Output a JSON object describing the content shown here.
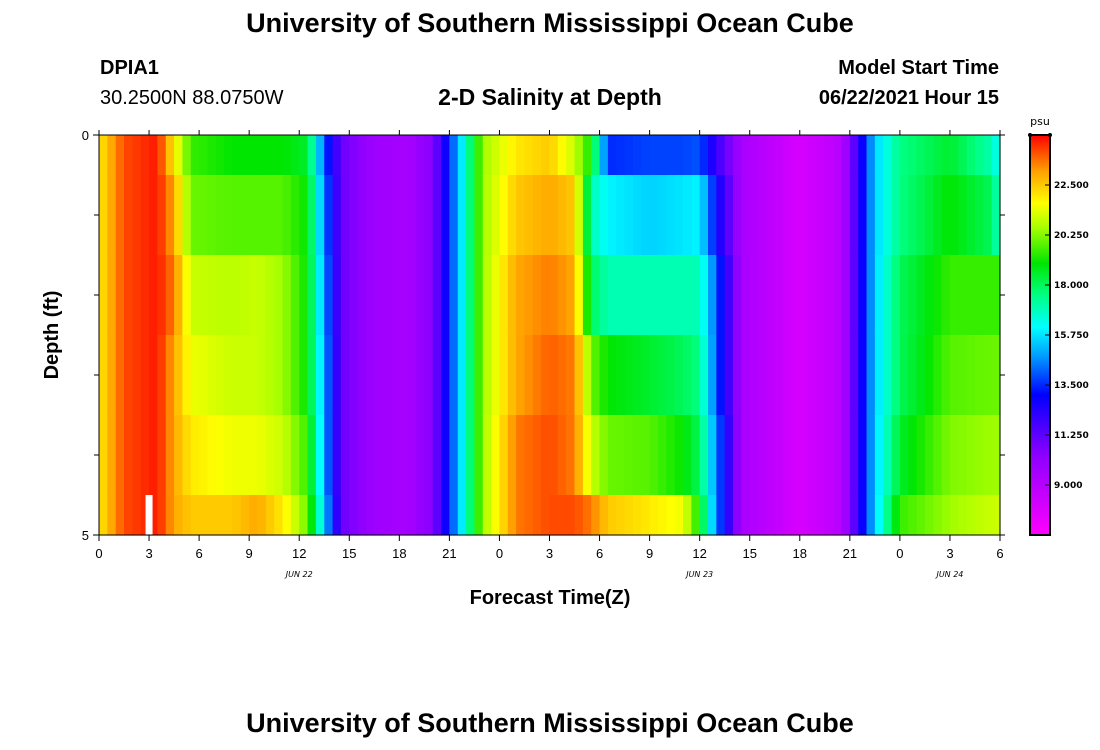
{
  "header": {
    "title": "University of Southern Mississippi Ocean Cube",
    "station_id": "DPIA1",
    "coordinates": "30.2500N  88.0750W",
    "plot_title": "2-D Salinity at Depth",
    "model_start_label": "Model Start Time",
    "model_start_value": "06/22/2021 Hour 15"
  },
  "footer": {
    "title": "University of Southern Mississippi Ocean Cube"
  },
  "colors": {
    "background": "#ffffff",
    "marker": "#ffffff"
  },
  "chart_data": {
    "type": "heatmap",
    "title": "2-D Salinity at Depth",
    "xlabel": "Forecast Time(Z)",
    "ylabel": "Depth (ft)",
    "x_range": [
      0,
      54
    ],
    "y_range": [
      0,
      5
    ],
    "x_tick_values": [
      0,
      3,
      6,
      9,
      12,
      15,
      18,
      21,
      24,
      27,
      30,
      33,
      36,
      39,
      42,
      45,
      48,
      51,
      54
    ],
    "x_tick_labels": [
      "0",
      "3",
      "6",
      "9",
      "12",
      "15",
      "18",
      "21",
      "0",
      "3",
      "6",
      "9",
      "12",
      "15",
      "18",
      "21",
      "0",
      "3",
      "6"
    ],
    "y_tick_labels": [
      {
        "value": 0,
        "label": "0"
      },
      {
        "value": 5,
        "label": "5"
      }
    ],
    "y_minor_ticks": [
      1,
      2,
      3,
      4
    ],
    "date_labels": [
      {
        "hour": 12,
        "label": "JUN 22"
      },
      {
        "hour": 36,
        "label": "JUN 23"
      },
      {
        "hour": 51,
        "label": "JUN 24"
      }
    ],
    "colorbar": {
      "unit": "psu",
      "range": [
        6.75,
        24.75
      ],
      "ticks": [
        "9.000",
        "11.250",
        "13.500",
        "15.750",
        "18.000",
        "20.250",
        "22.500"
      ],
      "tick_values": [
        9.0,
        11.25,
        13.5,
        15.75,
        18.0,
        20.25,
        22.5
      ]
    },
    "depth_layers": [
      {
        "top": 0.0,
        "bottom": 0.5
      },
      {
        "top": 0.5,
        "bottom": 1.5
      },
      {
        "top": 1.5,
        "bottom": 2.5
      },
      {
        "top": 2.5,
        "bottom": 3.5
      },
      {
        "top": 3.5,
        "bottom": 4.5
      },
      {
        "top": 4.5,
        "bottom": 5.0
      }
    ],
    "current_time_marker": {
      "hour": 3,
      "depth_from": 4.5,
      "depth_to": 5.0
    },
    "profile_keyframes": [
      {
        "hour": 0,
        "values": [
          22.0,
          22.0,
          22.0,
          22.0,
          22.0,
          22.0
        ]
      },
      {
        "hour": 1.5,
        "values": [
          24.0,
          24.0,
          24.0,
          24.0,
          24.0,
          24.0
        ]
      },
      {
        "hour": 3.5,
        "values": [
          24.5,
          24.5,
          24.5,
          24.5,
          24.5,
          24.5
        ]
      },
      {
        "hour": 4.5,
        "values": [
          22.0,
          23.0,
          23.5,
          23.0,
          23.0,
          23.0
        ]
      },
      {
        "hour": 5.5,
        "values": [
          19.5,
          20.0,
          21.0,
          21.5,
          22.0,
          22.5
        ]
      },
      {
        "hour": 8,
        "values": [
          19.0,
          19.8,
          20.8,
          21.0,
          21.5,
          22.5
        ]
      },
      {
        "hour": 9.5,
        "values": [
          19.0,
          19.8,
          21.0,
          21.0,
          21.5,
          23.0
        ]
      },
      {
        "hour": 11,
        "values": [
          19.0,
          19.8,
          20.5,
          20.5,
          21.0,
          22.0
        ]
      },
      {
        "hour": 12.5,
        "values": [
          18.5,
          19.0,
          19.0,
          19.0,
          19.5,
          20.0
        ]
      },
      {
        "hour": 13.5,
        "values": [
          14.0,
          14.5,
          14.8,
          15.0,
          15.0,
          15.5
        ]
      },
      {
        "hour": 14.5,
        "values": [
          11.0,
          11.0,
          11.0,
          11.0,
          11.0,
          11.0
        ]
      },
      {
        "hour": 16.5,
        "values": [
          9.8,
          9.8,
          9.8,
          9.8,
          9.8,
          9.8
        ]
      },
      {
        "hour": 18.5,
        "values": [
          9.5,
          9.5,
          9.5,
          9.5,
          9.5,
          9.5
        ]
      },
      {
        "hour": 20,
        "values": [
          10.5,
          10.5,
          10.5,
          10.5,
          10.5,
          10.5
        ]
      },
      {
        "hour": 21,
        "values": [
          13.5,
          13.5,
          13.5,
          13.5,
          13.5,
          13.5
        ]
      },
      {
        "hour": 21.8,
        "values": [
          16.0,
          16.0,
          16.0,
          16.0,
          16.0,
          16.0
        ]
      },
      {
        "hour": 23,
        "values": [
          20.5,
          20.5,
          20.5,
          20.5,
          20.5,
          20.5
        ]
      },
      {
        "hour": 25,
        "values": [
          22.0,
          22.5,
          23.0,
          23.0,
          23.5,
          23.5
        ]
      },
      {
        "hour": 27,
        "values": [
          22.5,
          23.0,
          23.5,
          23.8,
          24.0,
          24.0
        ]
      },
      {
        "hour": 28.5,
        "values": [
          21.0,
          22.5,
          23.0,
          23.5,
          23.5,
          24.0
        ]
      },
      {
        "hour": 29.5,
        "values": [
          19.0,
          17.0,
          18.0,
          20.0,
          21.0,
          23.5
        ]
      },
      {
        "hour": 30.5,
        "values": [
          13.5,
          16.0,
          17.0,
          19.0,
          20.0,
          22.5
        ]
      },
      {
        "hour": 33,
        "values": [
          13.8,
          15.5,
          17.0,
          18.5,
          19.8,
          22.0
        ]
      },
      {
        "hour": 35,
        "values": [
          13.8,
          15.8,
          17.0,
          18.0,
          19.0,
          21.5
        ]
      },
      {
        "hour": 36,
        "values": [
          14.0,
          16.0,
          17.0,
          17.5,
          18.0,
          19.0
        ]
      },
      {
        "hour": 37,
        "values": [
          12.0,
          13.0,
          14.0,
          14.0,
          14.5,
          14.5
        ]
      },
      {
        "hour": 38.5,
        "values": [
          9.5,
          9.5,
          9.5,
          9.5,
          9.5,
          9.5
        ]
      },
      {
        "hour": 42,
        "values": [
          8.0,
          8.0,
          8.0,
          8.0,
          8.0,
          8.0
        ]
      },
      {
        "hour": 44.5,
        "values": [
          9.0,
          9.0,
          9.0,
          9.0,
          9.0,
          9.0
        ]
      },
      {
        "hour": 45.5,
        "values": [
          12.0,
          12.0,
          12.0,
          12.0,
          12.0,
          12.0
        ]
      },
      {
        "hour": 46.5,
        "values": [
          15.5,
          15.5,
          15.5,
          15.5,
          15.5,
          15.5
        ]
      },
      {
        "hour": 48,
        "values": [
          17.5,
          17.5,
          18.0,
          18.0,
          18.5,
          19.5
        ]
      },
      {
        "hour": 51,
        "values": [
          18.5,
          19.0,
          19.5,
          19.8,
          20.2,
          20.5
        ]
      },
      {
        "hour": 53.5,
        "values": [
          17.0,
          18.0,
          19.5,
          20.0,
          20.5,
          21.0
        ]
      },
      {
        "hour": 54,
        "values": [
          16.0,
          16.5,
          19.5,
          20.0,
          20.5,
          21.0
        ]
      }
    ]
  }
}
